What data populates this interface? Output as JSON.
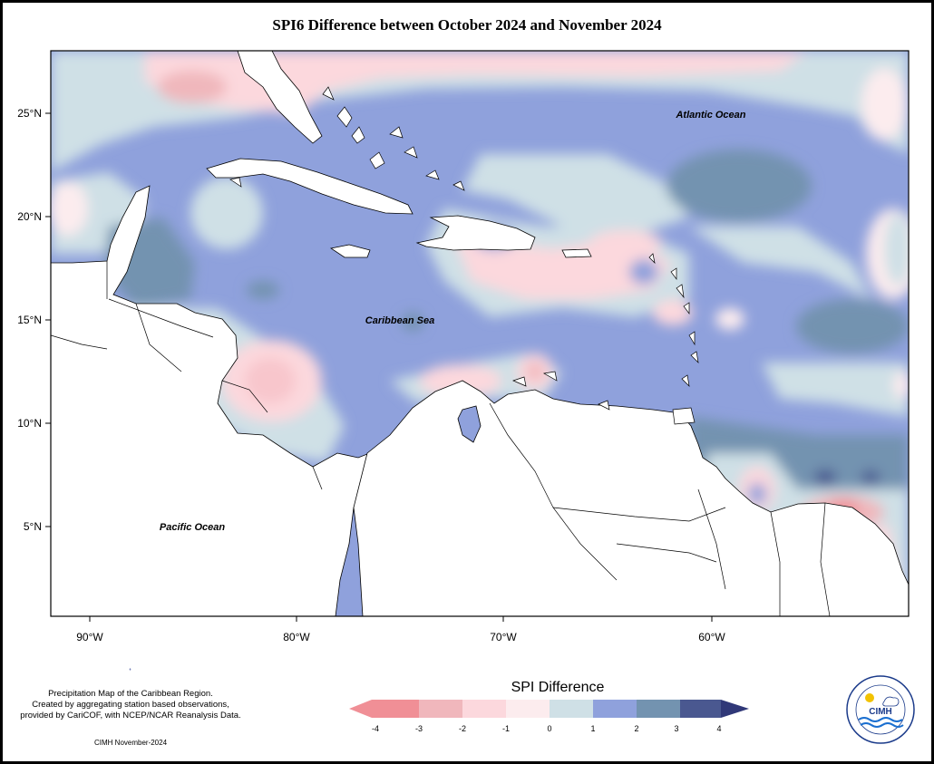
{
  "title": "SPI6 Difference between October 2024 and November 2024",
  "map": {
    "lat_ticks": [
      "25°N",
      "20°N",
      "15°N",
      "10°N",
      "5°N"
    ],
    "lon_ticks": [
      "90°W",
      "80°W",
      "70°W",
      "60°W"
    ],
    "labels": {
      "atlantic": "Atlantic Ocean",
      "caribbean": "Caribbean Sea",
      "pacific": "Pacific Ocean"
    }
  },
  "legend": {
    "title": "SPI Difference",
    "ticks": [
      "-4",
      "-3",
      "-2",
      "-1",
      "0",
      "1",
      "2",
      "3",
      "4"
    ],
    "colors": [
      "#f08f96",
      "#f0b7bc",
      "#fcd8dd",
      "#fcecee",
      "#cfe0e6",
      "#8fa1dc",
      "#7393b0",
      "#4a5890",
      "#303878"
    ]
  },
  "footnote": {
    "line1": "Precipitation Map of the Caribbean Region.",
    "line2": "Created by aggregating station based observations,",
    "line3": "provided by CariCOF, with NCEP/NCAR Reanalysis Data."
  },
  "credit": "CIMH November-2024",
  "logo": {
    "text": "CIMH"
  }
}
